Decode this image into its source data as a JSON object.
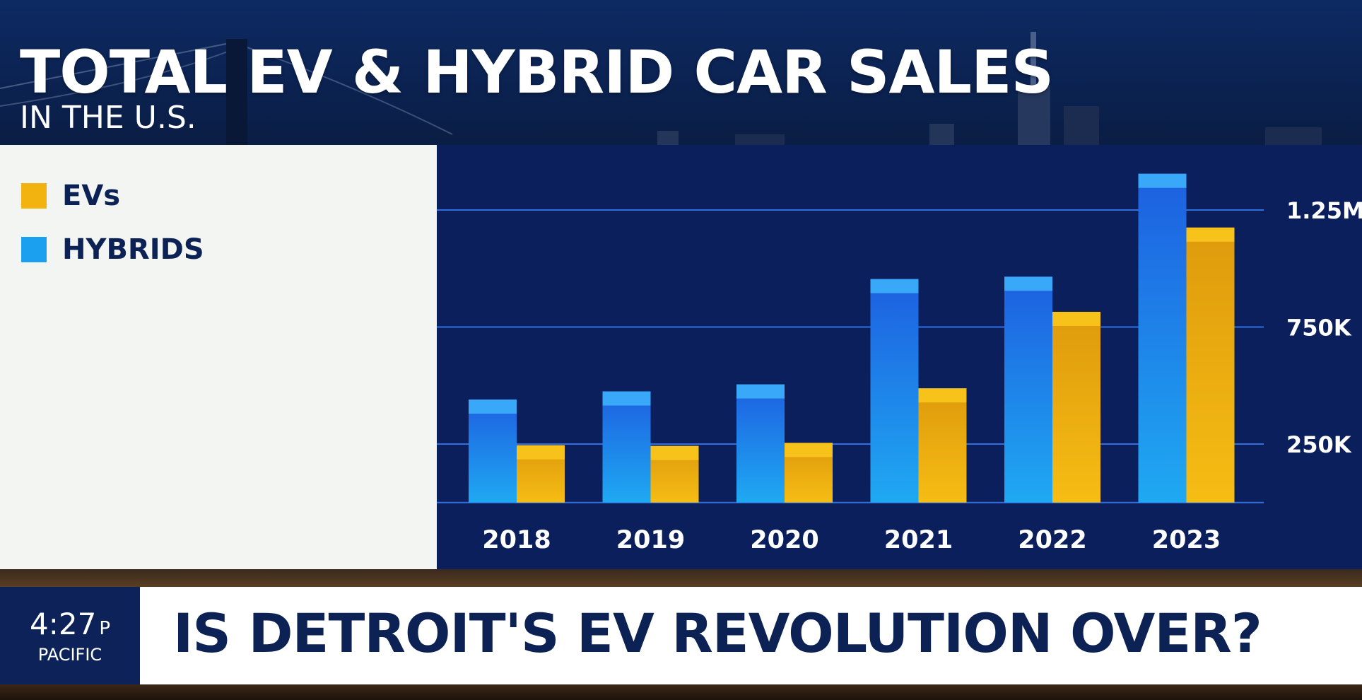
{
  "header": {
    "title": "TOTAL EV & HYBRID CAR SALES",
    "subtitle": "IN THE U.S."
  },
  "legend": [
    {
      "label": "EVs",
      "color": "#f2b311"
    },
    {
      "label": "HYBRIDS",
      "color": "#1aa0ee"
    }
  ],
  "chart_data": {
    "type": "bar",
    "title": "TOTAL EV & HYBRID CAR SALES",
    "subtitle": "IN THE U.S.",
    "categories": [
      "2018",
      "2019",
      "2020",
      "2021",
      "2022",
      "2023"
    ],
    "series": [
      {
        "name": "HYBRIDS",
        "color": "#1aa0ee",
        "values": [
          440000,
          475000,
          505000,
          955000,
          965000,
          1405000
        ]
      },
      {
        "name": "EVs",
        "color": "#f2b311",
        "values": [
          245000,
          242000,
          255000,
          488000,
          815000,
          1175000
        ]
      }
    ],
    "yticks": [
      {
        "value": 250000,
        "label": "250K"
      },
      {
        "value": 750000,
        "label": "750K"
      },
      {
        "value": 1250000,
        "label": "1.25M"
      }
    ],
    "ylim": [
      0,
      1400000
    ],
    "grid": true,
    "legend_position": "left"
  },
  "ticker": {
    "time": "4:27",
    "ampm": "P",
    "zone": "PACIFIC",
    "headline": "IS DETROIT'S EV REVOLUTION OVER?"
  }
}
